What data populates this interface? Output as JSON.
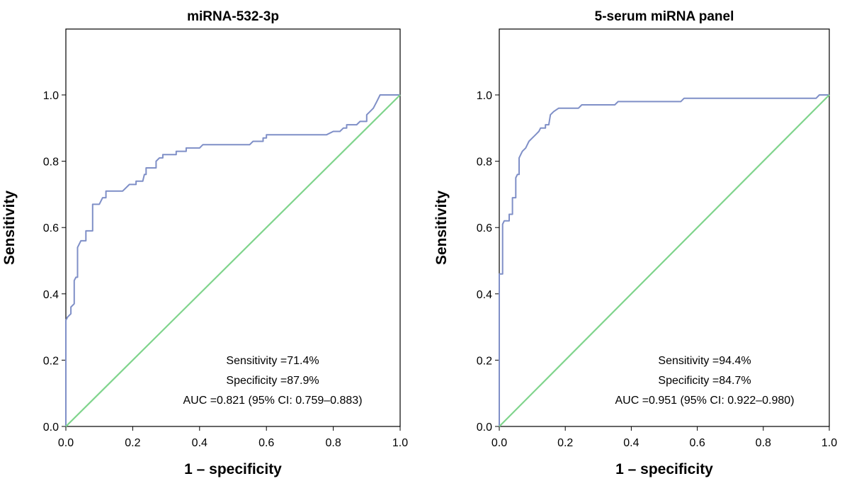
{
  "chart_data": [
    {
      "type": "line",
      "title": "miRNA-532-3p",
      "xlabel": "1 – specificity",
      "ylabel": "Sensitivity",
      "xlim": [
        0,
        1.0
      ],
      "ylim": [
        0,
        1.0
      ],
      "x_ticks": [
        "0.0",
        "0.2",
        "0.4",
        "0.6",
        "0.8",
        "1.0"
      ],
      "y_ticks": [
        "0.0",
        "0.2",
        "0.4",
        "0.6",
        "0.8",
        "1.0"
      ],
      "annotations": [
        "Sensitivity =71.4%",
        "Specificity =87.9%",
        "AUC =0.821 (95% CI: 0.759–0.883)"
      ],
      "colors": {
        "roc": "#7f8fc7",
        "reference": "#7fd48c"
      },
      "series": [
        {
          "role": "roc",
          "points": [
            [
              0,
              0
            ],
            [
              0,
              0.32
            ],
            [
              0.005,
              0.33
            ],
            [
              0.015,
              0.34
            ],
            [
              0.015,
              0.36
            ],
            [
              0.025,
              0.37
            ],
            [
              0.025,
              0.44
            ],
            [
              0.03,
              0.45
            ],
            [
              0.035,
              0.45
            ],
            [
              0.035,
              0.54
            ],
            [
              0.045,
              0.56
            ],
            [
              0.06,
              0.56
            ],
            [
              0.06,
              0.59
            ],
            [
              0.08,
              0.59
            ],
            [
              0.08,
              0.67
            ],
            [
              0.1,
              0.67
            ],
            [
              0.11,
              0.69
            ],
            [
              0.12,
              0.69
            ],
            [
              0.12,
              0.71
            ],
            [
              0.17,
              0.71
            ],
            [
              0.18,
              0.72
            ],
            [
              0.19,
              0.73
            ],
            [
              0.21,
              0.73
            ],
            [
              0.21,
              0.74
            ],
            [
              0.23,
              0.74
            ],
            [
              0.235,
              0.76
            ],
            [
              0.24,
              0.76
            ],
            [
              0.24,
              0.78
            ],
            [
              0.27,
              0.78
            ],
            [
              0.27,
              0.8
            ],
            [
              0.28,
              0.81
            ],
            [
              0.29,
              0.81
            ],
            [
              0.29,
              0.82
            ],
            [
              0.33,
              0.82
            ],
            [
              0.33,
              0.83
            ],
            [
              0.36,
              0.83
            ],
            [
              0.36,
              0.84
            ],
            [
              0.4,
              0.84
            ],
            [
              0.41,
              0.85
            ],
            [
              0.55,
              0.85
            ],
            [
              0.56,
              0.86
            ],
            [
              0.59,
              0.86
            ],
            [
              0.59,
              0.87
            ],
            [
              0.6,
              0.87
            ],
            [
              0.6,
              0.88
            ],
            [
              0.78,
              0.88
            ],
            [
              0.8,
              0.89
            ],
            [
              0.82,
              0.89
            ],
            [
              0.83,
              0.9
            ],
            [
              0.84,
              0.9
            ],
            [
              0.84,
              0.91
            ],
            [
              0.87,
              0.91
            ],
            [
              0.88,
              0.92
            ],
            [
              0.9,
              0.92
            ],
            [
              0.9,
              0.94
            ],
            [
              0.91,
              0.95
            ],
            [
              0.92,
              0.96
            ],
            [
              0.93,
              0.98
            ],
            [
              0.94,
              1.0
            ],
            [
              1.0,
              1.0
            ]
          ]
        },
        {
          "role": "reference",
          "points": [
            [
              0,
              0
            ],
            [
              1.0,
              1.0
            ]
          ]
        }
      ]
    },
    {
      "type": "line",
      "title": "5-serum miRNA panel",
      "xlabel": "1 – specificity",
      "ylabel": "Sensitivity",
      "xlim": [
        0,
        1.0
      ],
      "ylim": [
        0,
        1.0
      ],
      "x_ticks": [
        "0.0",
        "0.2",
        "0.4",
        "0.6",
        "0.8",
        "1.0"
      ],
      "y_ticks": [
        "0.0",
        "0.2",
        "0.4",
        "0.6",
        "0.8",
        "1.0"
      ],
      "annotations": [
        "Sensitivity =94.4%",
        "Specificity =84.7%",
        "AUC =0.951 (95% CI: 0.922–0.980)"
      ],
      "colors": {
        "roc": "#7f8fc7",
        "reference": "#7fd48c"
      },
      "series": [
        {
          "role": "roc",
          "points": [
            [
              0,
              0
            ],
            [
              0,
              0.46
            ],
            [
              0.01,
              0.46
            ],
            [
              0.01,
              0.61
            ],
            [
              0.015,
              0.62
            ],
            [
              0.03,
              0.62
            ],
            [
              0.03,
              0.64
            ],
            [
              0.04,
              0.64
            ],
            [
              0.04,
              0.69
            ],
            [
              0.05,
              0.69
            ],
            [
              0.05,
              0.75
            ],
            [
              0.055,
              0.76
            ],
            [
              0.06,
              0.76
            ],
            [
              0.06,
              0.81
            ],
            [
              0.065,
              0.82
            ],
            [
              0.07,
              0.83
            ],
            [
              0.08,
              0.84
            ],
            [
              0.085,
              0.85
            ],
            [
              0.09,
              0.86
            ],
            [
              0.1,
              0.87
            ],
            [
              0.11,
              0.88
            ],
            [
              0.12,
              0.89
            ],
            [
              0.125,
              0.9
            ],
            [
              0.14,
              0.9
            ],
            [
              0.14,
              0.91
            ],
            [
              0.15,
              0.91
            ],
            [
              0.155,
              0.94
            ],
            [
              0.165,
              0.95
            ],
            [
              0.18,
              0.96
            ],
            [
              0.24,
              0.96
            ],
            [
              0.25,
              0.97
            ],
            [
              0.35,
              0.97
            ],
            [
              0.36,
              0.98
            ],
            [
              0.55,
              0.98
            ],
            [
              0.56,
              0.99
            ],
            [
              0.96,
              0.99
            ],
            [
              0.97,
              1.0
            ],
            [
              1.0,
              1.0
            ]
          ]
        },
        {
          "role": "reference",
          "points": [
            [
              0,
              0
            ],
            [
              1.0,
              1.0
            ]
          ]
        }
      ]
    }
  ]
}
